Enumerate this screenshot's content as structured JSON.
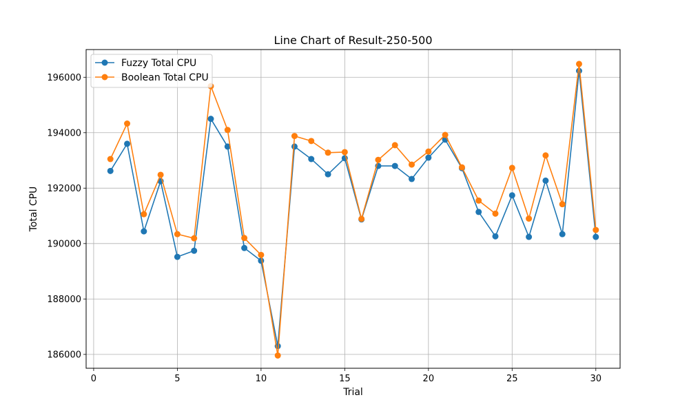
{
  "chart_data": {
    "type": "line",
    "title": "Line Chart of Result-250-500",
    "xlabel": "Trial",
    "ylabel": "Total CPU",
    "xlim": [
      -0.45,
      31.45
    ],
    "ylim": [
      185500,
      197000
    ],
    "xticks": [
      0,
      5,
      10,
      15,
      20,
      25,
      30
    ],
    "yticks": [
      186000,
      188000,
      190000,
      192000,
      194000,
      196000
    ],
    "xtick_labels": [
      "0",
      "5",
      "10",
      "15",
      "20",
      "25",
      "30"
    ],
    "ytick_labels": [
      "186000",
      "188000",
      "190000",
      "192000",
      "194000",
      "196000"
    ],
    "grid": true,
    "legend_position": "top-left",
    "x": [
      1,
      2,
      3,
      4,
      5,
      6,
      7,
      8,
      9,
      10,
      11,
      12,
      13,
      14,
      15,
      16,
      17,
      18,
      19,
      20,
      21,
      22,
      23,
      24,
      25,
      26,
      27,
      28,
      29,
      30
    ],
    "series": [
      {
        "name": "Fuzzy Total CPU",
        "color": "#1f77b4",
        "values": [
          192620,
          193600,
          190440,
          192250,
          189520,
          189740,
          194500,
          193500,
          189840,
          189380,
          186300,
          193500,
          193050,
          192500,
          193080,
          190870,
          192800,
          192800,
          192330,
          193100,
          193750,
          192720,
          191140,
          190260,
          191740,
          190240,
          192270,
          190340,
          196230,
          190240
        ]
      },
      {
        "name": "Boolean Total CPU",
        "color": "#ff7f0e",
        "values": [
          193050,
          194330,
          191060,
          192480,
          190340,
          190190,
          195680,
          194100,
          190200,
          189590,
          185960,
          193880,
          193700,
          193280,
          193300,
          190890,
          193020,
          193550,
          192850,
          193320,
          193920,
          192750,
          191550,
          191080,
          192730,
          190900,
          193180,
          191420,
          196480,
          190490
        ]
      }
    ]
  }
}
